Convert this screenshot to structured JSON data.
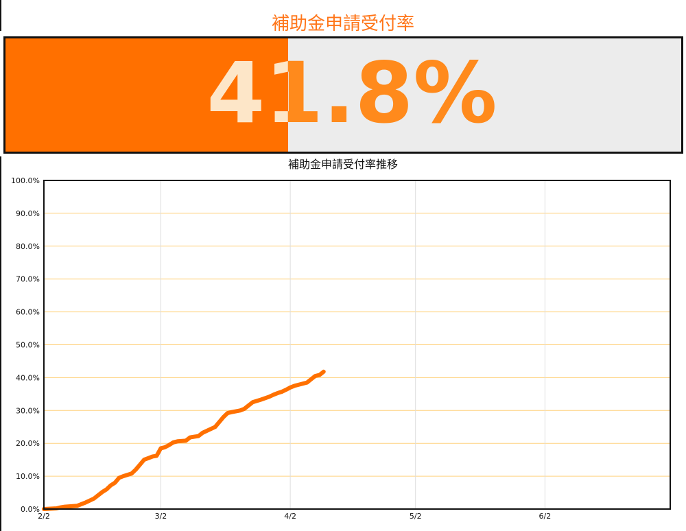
{
  "header": {
    "title": "補助金申請受付率"
  },
  "gauge": {
    "value_label": "41.8%",
    "fraction": 0.418,
    "fill_color": "#ff7000",
    "track_color": "#ececec"
  },
  "chart_data": {
    "type": "line",
    "title": "補助金申請受付率推移",
    "xlabel": "",
    "ylabel": "",
    "x_ticks": [
      "2/2",
      "3/2",
      "4/2",
      "5/2",
      "6/2"
    ],
    "y_ticks": [
      "0.0%",
      "10.0%",
      "20.0%",
      "30.0%",
      "40.0%",
      "50.0%",
      "60.0%",
      "70.0%",
      "80.0%",
      "90.0%",
      "100.0%"
    ],
    "xlim": [
      "2/2",
      "7/2"
    ],
    "ylim": [
      0,
      100
    ],
    "grid": true,
    "line_color": "#ff7000",
    "grid_color": "#ffd27f",
    "series": [
      {
        "x": [
          "2/2",
          "2/5",
          "2/6",
          "2/7",
          "2/10",
          "2/12",
          "2/14",
          "2/15",
          "2/16",
          "2/17",
          "2/18",
          "2/19",
          "2/20",
          "2/21",
          "2/23",
          "2/24",
          "2/25",
          "2/26",
          "2/27",
          "2/28",
          "3/1",
          "3/2",
          "3/3",
          "3/4",
          "3/5",
          "3/6",
          "3/8",
          "3/9",
          "3/10",
          "3/11",
          "3/12",
          "3/15",
          "3/17",
          "3/18",
          "3/19",
          "3/21",
          "3/22",
          "3/23",
          "3/24",
          "3/26",
          "3/28",
          "3/29",
          "3/30",
          "3/31",
          "4/1",
          "4/2",
          "4/3",
          "4/6",
          "4/7",
          "4/8",
          "4/9",
          "4/10"
        ],
        "values": [
          0.0,
          0.2,
          0.5,
          0.7,
          1.0,
          2.0,
          3.2,
          4.2,
          5.2,
          6.0,
          7.2,
          8.0,
          9.5,
          10.0,
          10.8,
          12.0,
          13.5,
          15.0,
          15.5,
          16.0,
          16.2,
          18.5,
          18.8,
          19.5,
          20.3,
          20.6,
          20.8,
          21.8,
          22.0,
          22.2,
          23.2,
          25.0,
          28.0,
          29.2,
          29.5,
          30.0,
          30.5,
          31.5,
          32.5,
          33.3,
          34.2,
          34.8,
          35.3,
          35.7,
          36.3,
          37.0,
          37.5,
          38.5,
          39.5,
          40.5,
          40.8,
          41.8
        ]
      }
    ]
  }
}
